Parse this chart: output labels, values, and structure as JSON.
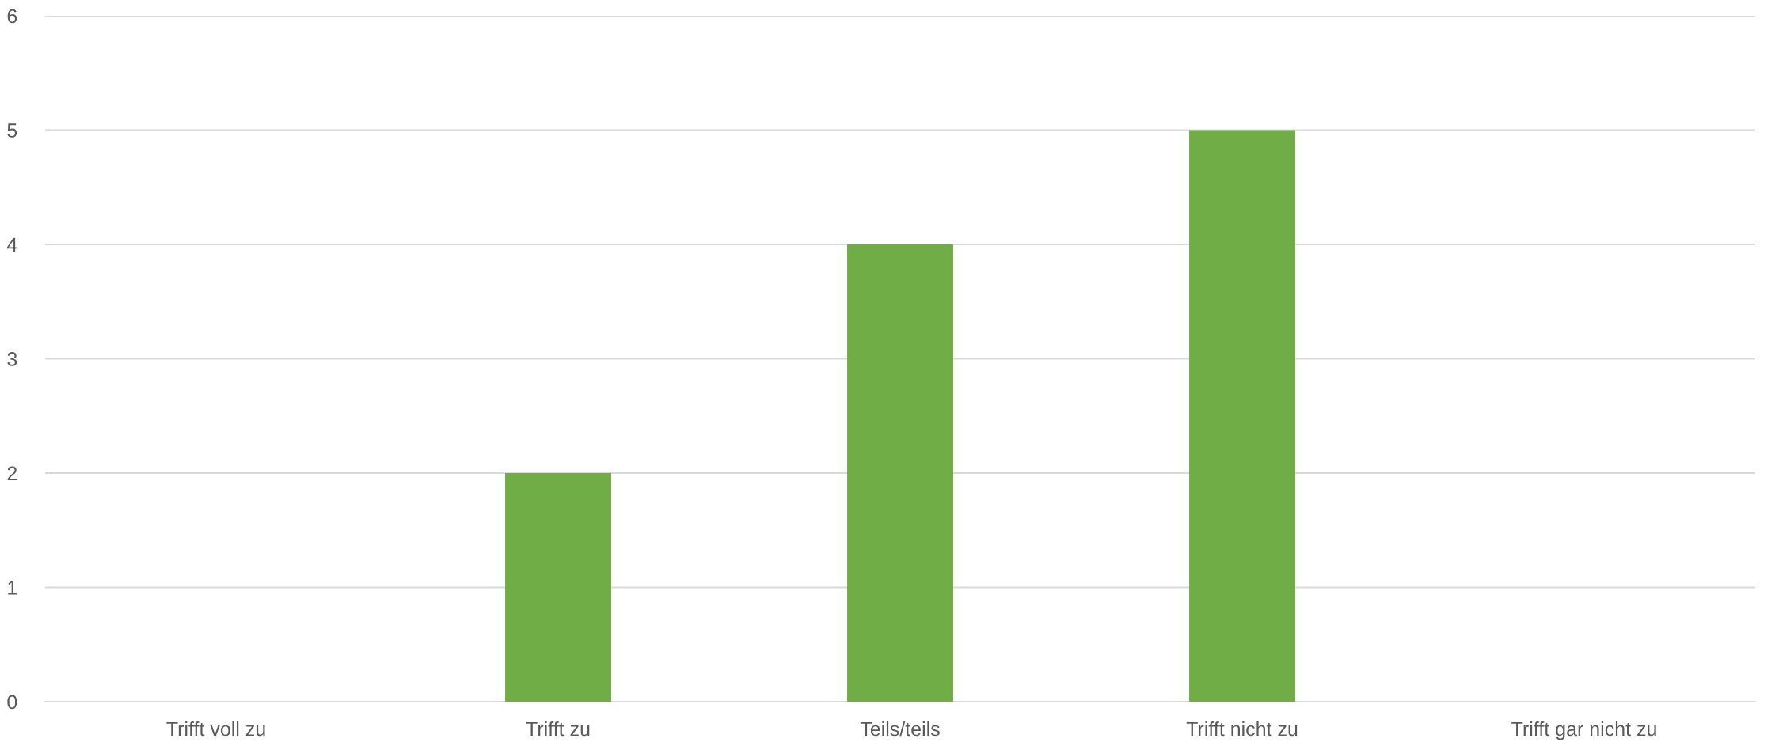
{
  "chart_data": {
    "type": "bar",
    "categories": [
      "Trifft voll zu",
      "Trifft zu",
      "Teils/teils",
      "Trifft nicht zu",
      "Trifft gar nicht zu"
    ],
    "values": [
      0,
      2,
      4,
      5,
      0
    ],
    "color": "#70ad47",
    "ylim": [
      0,
      6
    ],
    "yticks": [
      0,
      1,
      2,
      3,
      4,
      5,
      6
    ],
    "grid": "y"
  }
}
